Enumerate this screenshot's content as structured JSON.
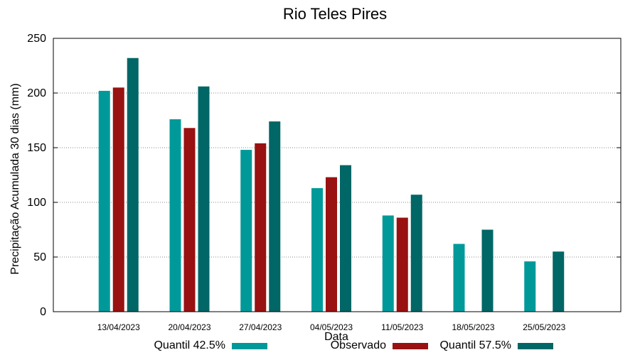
{
  "chart_data": {
    "type": "bar",
    "title": "Rio Teles Pires",
    "xlabel": "Data",
    "ylabel": "Precipitação Acumulada 30 dias (mm)",
    "ylim": [
      0,
      250
    ],
    "yticks": [
      0,
      50,
      100,
      150,
      200,
      250
    ],
    "grid": true,
    "legend_position": "bottom",
    "categories": [
      "13/04/2023",
      "20/04/2023",
      "27/04/2023",
      "04/05/2023",
      "11/05/2023",
      "18/05/2023",
      "25/05/2023"
    ],
    "series": [
      {
        "name": "Quantil 42.5%",
        "color": "#009999",
        "values": [
          202,
          176,
          148,
          113,
          88,
          62,
          46
        ]
      },
      {
        "name": "Observado",
        "color": "#991111",
        "values": [
          205,
          168,
          154,
          123,
          86,
          null,
          null
        ]
      },
      {
        "name": "Quantil 57.5%",
        "color": "#006666",
        "values": [
          232,
          206,
          174,
          134,
          107,
          75,
          55
        ]
      }
    ]
  }
}
